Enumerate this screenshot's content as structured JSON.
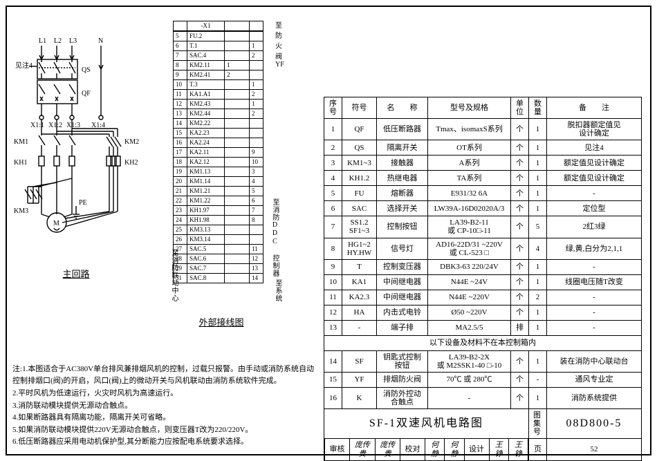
{
  "colors": {
    "line": "#000",
    "bg": "#fff"
  },
  "circuit": {
    "title": "主回路",
    "labels": {
      "L1": "L1",
      "L2": "L2",
      "L3": "L3",
      "N": "N",
      "note4": "见注4",
      "QS": "QS",
      "QF": "QF",
      "X11": "X1:1",
      "X12": "X1:2",
      "X13": "X1:3",
      "X14": "X1:4",
      "KM1": "KM1",
      "KM2": "KM2",
      "KH1": "KH1",
      "KH2": "KH2",
      "KM3": "KM3",
      "PE": "PE",
      "M": "M"
    }
  },
  "wiring": {
    "title": "外部接线图",
    "header": "-X1",
    "right_label": "至防火阀YF",
    "side_labels": [
      "至消防联动中心",
      "至消防DDC 控制器",
      "至系统"
    ],
    "rows": [
      {
        "n": 5,
        "a": "FU.2",
        "b": "",
        "c": ""
      },
      {
        "n": 6,
        "a": "T.1",
        "b": "",
        "c": "1"
      },
      {
        "n": 7,
        "a": "SAC.4",
        "b": "",
        "c": "2"
      },
      {
        "n": 8,
        "a": "KM2.11",
        "b": "1",
        "c": ""
      },
      {
        "n": 9,
        "a": "KM2.41",
        "b": "2",
        "c": ""
      },
      {
        "n": 10,
        "a": "T.3",
        "b": "",
        "c": "1"
      },
      {
        "n": 11,
        "a": "KA1.A1",
        "b": "",
        "c": "2"
      },
      {
        "n": 12,
        "a": "KM2.43",
        "b": "",
        "c": "1"
      },
      {
        "n": 13,
        "a": "KM2.44",
        "b": "",
        "c": "2"
      },
      {
        "n": 14,
        "a": "KM2.22",
        "b": "",
        "c": ""
      },
      {
        "n": 15,
        "a": "KA2.23",
        "b": "",
        "c": ""
      },
      {
        "n": 16,
        "a": "KA2.24",
        "b": "",
        "c": ""
      },
      {
        "n": 17,
        "a": "KA2.11",
        "b": "",
        "c": "9"
      },
      {
        "n": 18,
        "a": "KA2.12",
        "b": "",
        "c": "10"
      },
      {
        "n": 19,
        "a": "KM1.13",
        "b": "",
        "c": "3"
      },
      {
        "n": 20,
        "a": "KM1.14",
        "b": "",
        "c": "4"
      },
      {
        "n": 21,
        "a": "KM1.21",
        "b": "",
        "c": "5"
      },
      {
        "n": 22,
        "a": "KM1.22",
        "b": "",
        "c": "6"
      },
      {
        "n": 23,
        "a": "KH1.97",
        "b": "",
        "c": "7"
      },
      {
        "n": 24,
        "a": "KH1.98",
        "b": "",
        "c": "8"
      },
      {
        "n": 25,
        "a": "KM3.13",
        "b": "",
        "c": ""
      },
      {
        "n": 26,
        "a": "KM3.14",
        "b": "",
        "c": ""
      },
      {
        "n": 27,
        "a": "SAC.5",
        "b": "",
        "c": "11"
      },
      {
        "n": 28,
        "a": "SAC.6",
        "b": "",
        "c": "12"
      },
      {
        "n": 29,
        "a": "SAC.7",
        "b": "",
        "c": "13"
      },
      {
        "n": 31,
        "a": "SAC.8",
        "b": "",
        "c": "14"
      }
    ]
  },
  "bom": {
    "headers": [
      "序号",
      "符号",
      "名　　称",
      "型号及规格",
      "单位",
      "数量",
      "备　　注"
    ],
    "note_row": "以下设备及材料不在本控制箱内",
    "rows": [
      {
        "i": "1",
        "s": "QF",
        "n": "低压断路器",
        "m": "Tmax、isomaxS系列",
        "u": "个",
        "q": "1",
        "r": "脱扣器额定值见\n设计确定"
      },
      {
        "i": "2",
        "s": "QS",
        "n": "隔离开关",
        "m": "OT系列",
        "u": "个",
        "q": "1",
        "r": "见注4"
      },
      {
        "i": "3",
        "s": "KM1~3",
        "n": "接触器",
        "m": "A系列",
        "u": "个",
        "q": "1",
        "r": "额定值见设计确定"
      },
      {
        "i": "4",
        "s": "KH1.2",
        "n": "热继电器",
        "m": "TA系列",
        "u": "个",
        "q": "1",
        "r": "额定值见设计确定"
      },
      {
        "i": "5",
        "s": "FU",
        "n": "熔断器",
        "m": "E931/32 6A",
        "u": "个",
        "q": "1",
        "r": "-"
      },
      {
        "i": "6",
        "s": "SAC",
        "n": "选择开关",
        "m": "LW39A-16D02020A/3",
        "u": "个",
        "q": "1",
        "r": "定位型"
      },
      {
        "i": "7",
        "s": "SS1.2\nSF1~3",
        "n": "控制按钮",
        "m": "LA39-B2-11\n或 CP-10□-11",
        "u": "个",
        "q": "5",
        "r": "2红3绿"
      },
      {
        "i": "8",
        "s": "HG1~2\nHY.HW",
        "n": "信号灯",
        "m": "AD16-22D/31 ~220V\n或 CL-523 □",
        "u": "个",
        "q": "4",
        "r": "绿,黄,白分为2,1,1"
      },
      {
        "i": "9",
        "s": "T",
        "n": "控制变压器",
        "m": "DBK3-63 220/24V",
        "u": "个",
        "q": "1",
        "r": "-"
      },
      {
        "i": "10",
        "s": "KA1",
        "n": "中间继电器",
        "m": "N44E ~24V",
        "u": "个",
        "q": "1",
        "r": "线圈电压随T改变"
      },
      {
        "i": "11",
        "s": "KA2.3",
        "n": "中间继电器",
        "m": "N44E ~220V",
        "u": "个",
        "q": "2",
        "r": "-"
      },
      {
        "i": "12",
        "s": "HA",
        "n": "内击式电铃",
        "m": "Ø50 ~220V",
        "u": "个",
        "q": "1",
        "r": "-"
      },
      {
        "i": "13",
        "s": "-",
        "n": "端子排",
        "m": "MA2.5/5",
        "u": "排",
        "q": "1",
        "r": "-"
      }
    ],
    "rows2": [
      {
        "i": "14",
        "s": "SF",
        "n": "钥匙式控制按钮",
        "m": "LA39-B2-2X\n或 M2SSK1-40 □-10",
        "u": "个",
        "q": "1",
        "r": "装在消防中心联动台"
      },
      {
        "i": "15",
        "s": "YF",
        "n": "排烟防火阀",
        "m": "70℃ 或 280℃",
        "u": "个",
        "q": "-",
        "r": "通风专业定"
      },
      {
        "i": "16",
        "s": "K",
        "n": "消防外控动合触点",
        "m": "-",
        "u": "个",
        "q": "1",
        "r": "消防系统提供"
      }
    ],
    "title": "SF-1双速风机电路图",
    "album_label": "图集号",
    "album": "08D800-5",
    "page_label": "页",
    "page": "52",
    "approvals": [
      {
        "k": "审核",
        "v": "庞传贵"
      },
      {
        "k": "",
        "v": "庞传贵"
      },
      {
        "k": "校对",
        "v": "何静"
      },
      {
        "k": "",
        "v": "何静"
      },
      {
        "k": "设计",
        "v": "王铮"
      },
      {
        "k": "",
        "v": "王铮"
      }
    ]
  },
  "notes": {
    "lead": "注:",
    "items": [
      "1.本图适合于AC380V单台排风兼排烟风机的控制，过载只报警。由手动或消防系统自动控制排烟口(阀)的开启，风口(阀)上的微动开关与风机联动由消防系统软件完成。",
      "2.平时风机为低速运行，火灾时风机为高速运行。",
      "3.消防联动模块提供无源动合触点。",
      "4.如果断路器具有隔离功能，隔离开关可省略。",
      "5.如果消防联动模块提供220V无源动合触点，则变压器T改为220/220V。",
      "6.低压断路器应采用电动机保护型,其分断能力应按配电系统要求选择。"
    ]
  }
}
